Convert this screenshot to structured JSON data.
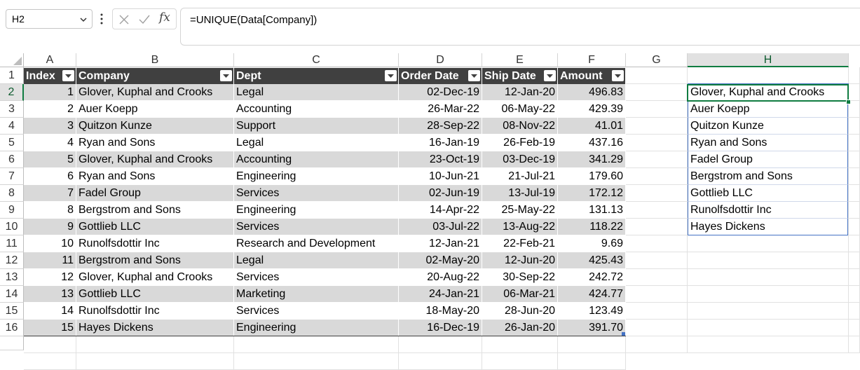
{
  "name_box": {
    "value": "H2"
  },
  "formula_bar": {
    "formula": "=UNIQUE(Data[Company])",
    "fx_label": "fx"
  },
  "icons": {
    "cancel": "close-icon",
    "enter": "check-icon",
    "insert_function": "fx-icon",
    "menu": "more-vertical-icon"
  },
  "columns": [
    "A",
    "B",
    "C",
    "D",
    "E",
    "F",
    "G",
    "H"
  ],
  "selected_column": "H",
  "rows": [
    "1",
    "2",
    "3",
    "4",
    "5",
    "6",
    "7",
    "8",
    "9",
    "10",
    "11",
    "12",
    "13",
    "14",
    "15",
    "16"
  ],
  "selected_row": "2",
  "table": {
    "headers": [
      "Index",
      "Company",
      "Dept",
      "Order Date",
      "Ship Date",
      "Amount"
    ],
    "rows": [
      [
        "1",
        "Glover, Kuphal and Crooks",
        "Legal",
        "02-Dec-19",
        "12-Jan-20",
        "496.83"
      ],
      [
        "2",
        "Auer Koepp",
        "Accounting",
        "26-Mar-22",
        "06-May-22",
        "429.39"
      ],
      [
        "3",
        "Quitzon Kunze",
        "Support",
        "28-Sep-22",
        "08-Nov-22",
        "41.01"
      ],
      [
        "4",
        "Ryan and Sons",
        "Legal",
        "16-Jan-19",
        "26-Feb-19",
        "437.16"
      ],
      [
        "5",
        "Glover, Kuphal and Crooks",
        "Accounting",
        "23-Oct-19",
        "03-Dec-19",
        "341.29"
      ],
      [
        "6",
        "Ryan and Sons",
        "Engineering",
        "10-Jun-21",
        "21-Jul-21",
        "179.60"
      ],
      [
        "7",
        "Fadel Group",
        "Services",
        "02-Jun-19",
        "13-Jul-19",
        "172.12"
      ],
      [
        "8",
        "Bergstrom and Sons",
        "Engineering",
        "14-Apr-22",
        "25-May-22",
        "131.13"
      ],
      [
        "9",
        "Gottlieb LLC",
        "Services",
        "03-Jul-22",
        "13-Aug-22",
        "118.22"
      ],
      [
        "10",
        "Runolfsdottir Inc",
        "Research and Development",
        "12-Jan-21",
        "22-Feb-21",
        "9.69"
      ],
      [
        "11",
        "Bergstrom and Sons",
        "Legal",
        "02-May-20",
        "12-Jun-20",
        "425.43"
      ],
      [
        "12",
        "Glover, Kuphal and Crooks",
        "Services",
        "20-Aug-22",
        "30-Sep-22",
        "242.72"
      ],
      [
        "13",
        "Gottlieb LLC",
        "Marketing",
        "24-Jan-21",
        "06-Mar-21",
        "424.77"
      ],
      [
        "14",
        "Runolfsdottir Inc",
        "Services",
        "18-May-20",
        "28-Jun-20",
        "123.49"
      ],
      [
        "15",
        "Hayes Dickens",
        "Engineering",
        "16-Dec-19",
        "26-Jan-20",
        "391.70"
      ]
    ]
  },
  "unique_list": [
    "Glover, Kuphal and Crooks",
    "Auer Koepp",
    "Quitzon Kunze",
    "Ryan and Sons",
    "Fadel Group",
    "Bergstrom and Sons",
    "Gottlieb LLC",
    "Runolfsdottir Inc",
    "Hayes Dickens"
  ],
  "colors": {
    "header_fill": "#404040",
    "band_fill": "#d9d9d9",
    "selection": "#107c41",
    "spill_border": "#4472c4"
  }
}
